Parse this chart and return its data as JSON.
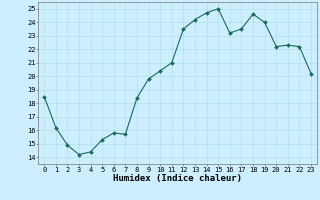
{
  "x": [
    0,
    1,
    2,
    3,
    4,
    5,
    6,
    7,
    8,
    9,
    10,
    11,
    12,
    13,
    14,
    15,
    16,
    17,
    18,
    19,
    20,
    21,
    22,
    23
  ],
  "y": [
    18.5,
    16.2,
    14.9,
    14.2,
    14.4,
    15.3,
    15.8,
    15.7,
    18.4,
    19.8,
    20.4,
    21.0,
    23.5,
    24.2,
    24.7,
    25.0,
    23.2,
    23.5,
    24.6,
    24.0,
    22.2,
    22.3,
    22.2,
    20.2
  ],
  "line_color": "#1a6b5a",
  "marker": "D",
  "marker_size": 2.0,
  "bg_color": "#cceeff",
  "grid_color": "#aadddd",
  "xlabel": "Humidex (Indice chaleur)",
  "ylabel": "",
  "xlim": [
    -0.5,
    23.5
  ],
  "ylim": [
    13.5,
    25.5
  ],
  "yticks": [
    14,
    15,
    16,
    17,
    18,
    19,
    20,
    21,
    22,
    23,
    24,
    25
  ],
  "xticks": [
    0,
    1,
    2,
    3,
    4,
    5,
    6,
    7,
    8,
    9,
    10,
    11,
    12,
    13,
    14,
    15,
    16,
    17,
    18,
    19,
    20,
    21,
    22,
    23
  ],
  "tick_fontsize": 5.0,
  "xlabel_fontsize": 6.5
}
